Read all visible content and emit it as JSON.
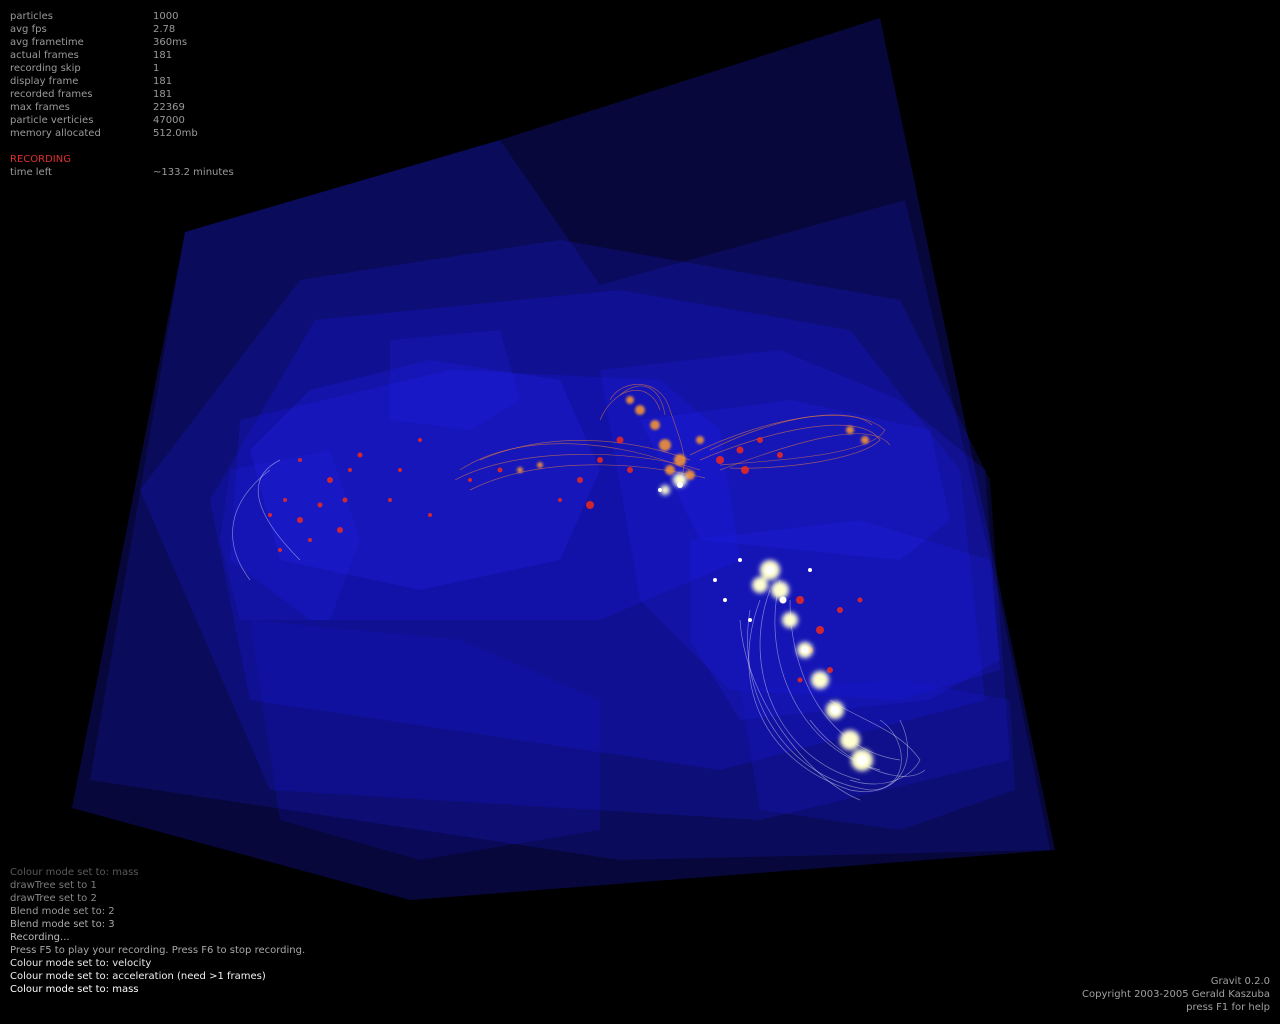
{
  "window": {
    "app": "Gravit"
  },
  "stats": [
    {
      "label": "particles",
      "value": "1000"
    },
    {
      "label": "avg fps",
      "value": "2.78"
    },
    {
      "label": "avg frametime",
      "value": "360ms"
    },
    {
      "label": "actual frames",
      "value": "181"
    },
    {
      "label": "recording skip",
      "value": "1"
    },
    {
      "label": "display frame",
      "value": "181"
    },
    {
      "label": "recorded frames",
      "value": "181"
    },
    {
      "label": "max frames",
      "value": "22369"
    },
    {
      "label": "particle verticies",
      "value": "47000"
    },
    {
      "label": "memory allocated",
      "value": "512.0mb"
    }
  ],
  "recording": {
    "status": "RECORDING",
    "time_left_label": "time left",
    "time_left_value": "~133.2 minutes"
  },
  "log": [
    {
      "text": "Colour mode set to: mass",
      "color": "#5a5a5a"
    },
    {
      "text": "drawTree set to 1",
      "color": "#7a7a7a"
    },
    {
      "text": "drawTree set to 2",
      "color": "#8a8a8a"
    },
    {
      "text": "Blend mode set to: 2",
      "color": "#9a9a9a"
    },
    {
      "text": "Blend mode set to: 3",
      "color": "#aaaaaa"
    },
    {
      "text": "Recording...",
      "color": "#bbbbbb"
    },
    {
      "text": "Press F5 to play your recording. Press F6 to stop recording.",
      "color": "#a8a8a8"
    },
    {
      "text": "Colour mode set to: velocity",
      "color": "#e6e6e6"
    },
    {
      "text": "Colour mode set to: acceleration (need >1 frames)",
      "color": "#f2f2f2"
    },
    {
      "text": "Colour mode set to: mass",
      "color": "#ffffff"
    }
  ],
  "credits": {
    "version": "Gravit 0.2.0",
    "copyright": "Copyright 2003-2005 Gerald Kaszuba",
    "help": "press F1 for help"
  },
  "colors": {
    "background": "#000000",
    "octree_box": "#1a1aff",
    "particle_red": "#ff2a10",
    "particle_orange": "#ff9a30",
    "particle_white": "#ffffd0",
    "recording": "#e03030"
  }
}
